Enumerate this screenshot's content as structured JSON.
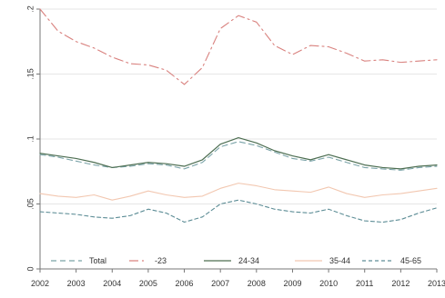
{
  "chart_data": {
    "type": "line",
    "title": "",
    "xlabel": "",
    "ylabel": "",
    "x_start": 2002,
    "x_end": 2013,
    "xlim": [
      2002,
      2013
    ],
    "ylim": [
      0,
      0.2
    ],
    "x_ticks": [
      "2002",
      "2003",
      "2004",
      "2005",
      "2006",
      "2007",
      "2008",
      "2009",
      "2010",
      "2011",
      "2012",
      "2013"
    ],
    "y_ticks": [
      {
        "value": 0,
        "label": "0"
      },
      {
        "value": 0.05,
        "label": ".05"
      },
      {
        "value": 0.1,
        "label": ".1"
      },
      {
        "value": 0.15,
        "label": ".15"
      },
      {
        "value": 0.2,
        "label": ".2"
      }
    ],
    "grid": "horizontal",
    "legend": "bottom",
    "series": [
      {
        "name": "Total",
        "color": "#7aa3a8",
        "dash": "6,4",
        "x": [
          2002,
          2002.5,
          2003,
          2003.5,
          2004,
          2004.5,
          2005,
          2005.5,
          2006,
          2006.5,
          2007,
          2007.5,
          2008,
          2008.5,
          2009,
          2009.5,
          2010,
          2010.5,
          2011,
          2011.5,
          2012,
          2012.5,
          2013
        ],
        "y": [
          0.088,
          0.086,
          0.083,
          0.08,
          0.078,
          0.079,
          0.081,
          0.08,
          0.077,
          0.082,
          0.094,
          0.098,
          0.095,
          0.09,
          0.085,
          0.083,
          0.086,
          0.082,
          0.078,
          0.077,
          0.076,
          0.078,
          0.079
        ]
      },
      {
        "name": "-23",
        "color": "#d9827f",
        "dash": "10,4,2,4",
        "x": [
          2002,
          2002.5,
          2003,
          2003.5,
          2004,
          2004.5,
          2005,
          2005.5,
          2006,
          2006.5,
          2007,
          2007.5,
          2008,
          2008.5,
          2009,
          2009.5,
          2010,
          2010.5,
          2011,
          2011.5,
          2012,
          2012.5,
          2013
        ],
        "y": [
          0.2,
          0.183,
          0.175,
          0.17,
          0.163,
          0.158,
          0.157,
          0.153,
          0.142,
          0.155,
          0.185,
          0.195,
          0.19,
          0.172,
          0.165,
          0.172,
          0.171,
          0.166,
          0.16,
          0.161,
          0.159,
          0.16,
          0.161
        ]
      },
      {
        "name": "24-34",
        "color": "#4d6e52",
        "dash": "",
        "x": [
          2002,
          2002.5,
          2003,
          2003.5,
          2004,
          2004.5,
          2005,
          2005.5,
          2006,
          2006.5,
          2007,
          2007.5,
          2008,
          2008.5,
          2009,
          2009.5,
          2010,
          2010.5,
          2011,
          2011.5,
          2012,
          2012.5,
          2013
        ],
        "y": [
          0.089,
          0.087,
          0.085,
          0.082,
          0.078,
          0.08,
          0.082,
          0.081,
          0.079,
          0.084,
          0.096,
          0.101,
          0.097,
          0.091,
          0.087,
          0.084,
          0.088,
          0.084,
          0.08,
          0.078,
          0.077,
          0.079,
          0.08
        ]
      },
      {
        "name": "35-44",
        "color": "#f2c7b0",
        "dash": "",
        "x": [
          2002,
          2002.5,
          2003,
          2003.5,
          2004,
          2004.5,
          2005,
          2005.5,
          2006,
          2006.5,
          2007,
          2007.5,
          2008,
          2008.5,
          2009,
          2009.5,
          2010,
          2010.5,
          2011,
          2011.5,
          2012,
          2012.5,
          2013
        ],
        "y": [
          0.058,
          0.056,
          0.055,
          0.057,
          0.053,
          0.056,
          0.06,
          0.057,
          0.055,
          0.056,
          0.062,
          0.066,
          0.064,
          0.061,
          0.06,
          0.059,
          0.063,
          0.058,
          0.055,
          0.057,
          0.058,
          0.06,
          0.062
        ]
      },
      {
        "name": "45-65",
        "color": "#5d8d96",
        "dash": "4,3",
        "x": [
          2002,
          2002.5,
          2003,
          2003.5,
          2004,
          2004.5,
          2005,
          2005.5,
          2006,
          2006.5,
          2007,
          2007.5,
          2008,
          2008.5,
          2009,
          2009.5,
          2010,
          2010.5,
          2011,
          2011.5,
          2012,
          2012.5,
          2013
        ],
        "y": [
          0.044,
          0.043,
          0.042,
          0.04,
          0.039,
          0.041,
          0.046,
          0.043,
          0.036,
          0.04,
          0.05,
          0.053,
          0.05,
          0.046,
          0.044,
          0.043,
          0.046,
          0.041,
          0.037,
          0.036,
          0.038,
          0.043,
          0.047
        ]
      }
    ]
  }
}
